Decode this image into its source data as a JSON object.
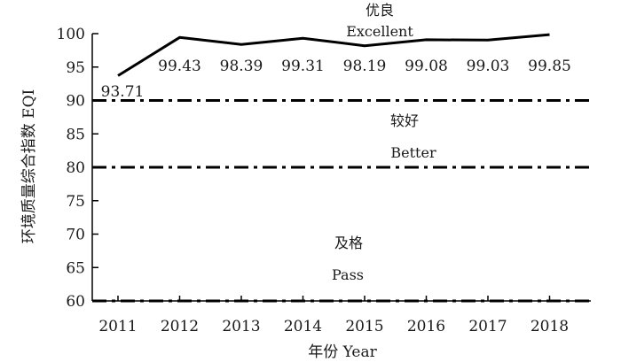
{
  "chart_data": {
    "type": "line",
    "x": [
      "2011",
      "2012",
      "2013",
      "2014",
      "2015",
      "2016",
      "2017",
      "2018"
    ],
    "series": [
      {
        "values": [
          93.71,
          99.43,
          98.39,
          99.31,
          98.19,
          99.08,
          99.03,
          99.85
        ]
      }
    ],
    "data_labels": [
      "93.71",
      "99.43",
      "98.39",
      "99.31",
      "98.19",
      "99.08",
      "99.03",
      "99.85"
    ],
    "xlabel": "年份 Year",
    "ylabel": "环境质量综合指数 EQI",
    "ylim": [
      60,
      100
    ],
    "yticks": [
      60,
      65,
      70,
      75,
      80,
      85,
      90,
      95,
      100
    ],
    "thresholds": [
      {
        "value": 90,
        "style": "dash-dot"
      },
      {
        "value": 80,
        "style": "dash-dot"
      },
      {
        "value": 60,
        "style": "dash-dot"
      }
    ],
    "zones": [
      {
        "zh": "优良",
        "en": "Excellent"
      },
      {
        "zh": "较好",
        "en": "Better"
      },
      {
        "zh": "及格",
        "en": "Pass"
      }
    ],
    "grid": false,
    "line_color": "#000000"
  }
}
